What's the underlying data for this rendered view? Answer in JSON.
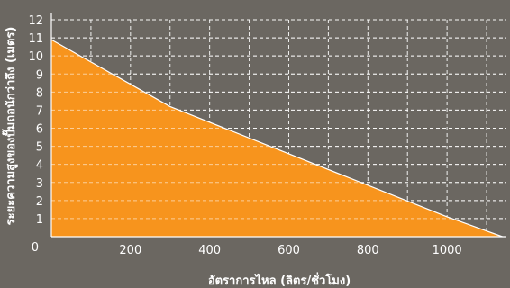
{
  "chart_data": {
    "type": "area",
    "title": "",
    "xlabel": "อัตราการไหล (ลิตร/ชั่วโมง)",
    "ylabel": "ระยะความสูงของปั๊มถอนักว่าถึง (เมตร)",
    "xlim": [
      0,
      1150
    ],
    "ylim": [
      0,
      12
    ],
    "x_ticks": [
      "200",
      "400",
      "600",
      "800",
      "1000"
    ],
    "y_ticks": [
      "0",
      "1",
      "2",
      "3",
      "4",
      "5",
      "6",
      "7",
      "8",
      "9",
      "10",
      "11",
      "12"
    ],
    "grid": true,
    "series": [
      {
        "x": [
          0,
          300,
          1000,
          1140
        ],
        "y": [
          10.9,
          7.2,
          1.1,
          0
        ]
      }
    ],
    "colors": {
      "background": "#6b6761",
      "fill": "#f7941d",
      "line": "#ffffff",
      "grid": "#ffffff",
      "text": "#ffffff"
    }
  }
}
